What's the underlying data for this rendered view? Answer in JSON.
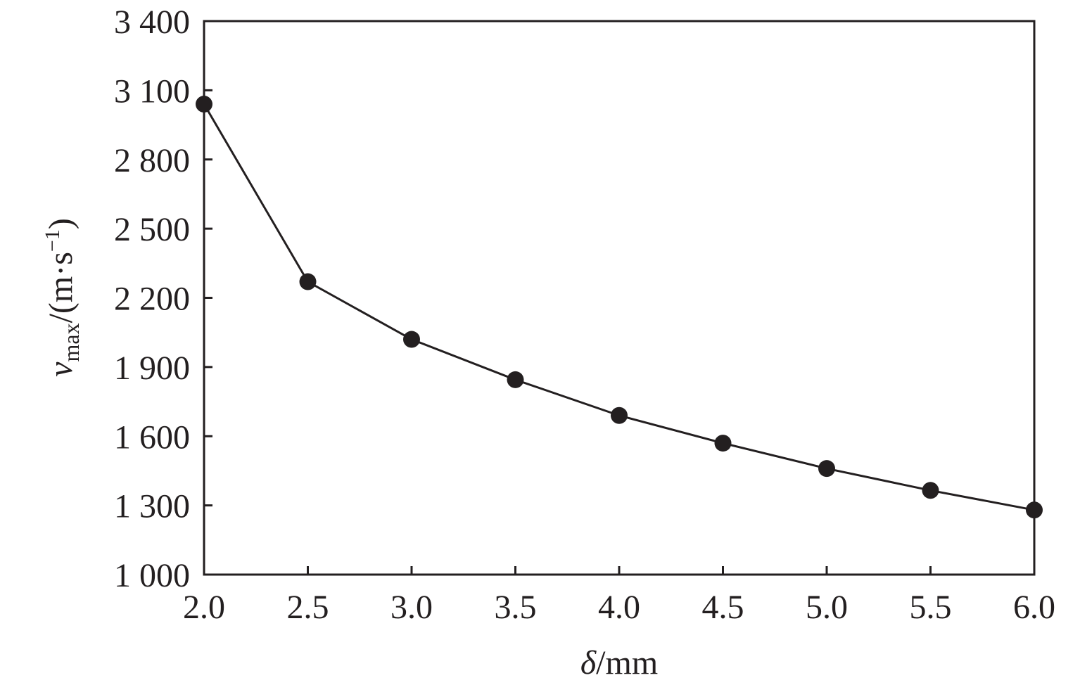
{
  "chart_data": {
    "type": "line",
    "title": "",
    "xlabel": {
      "symbol": "δ",
      "unit": "/mm"
    },
    "ylabel": {
      "symbol": "v",
      "subscript": "max",
      "unit": "/(m·s",
      "superscript": "−1",
      "close": ")"
    },
    "xlim": [
      2.0,
      6.0
    ],
    "ylim": [
      1000,
      3400
    ],
    "x_ticks": [
      2.0,
      2.5,
      3.0,
      3.5,
      4.0,
      4.5,
      5.0,
      5.5,
      6.0
    ],
    "x_tick_labels": [
      "2.0",
      "2.5",
      "3.0",
      "3.5",
      "4.0",
      "4.5",
      "5.0",
      "5.5",
      "6.0"
    ],
    "y_ticks": [
      1000,
      1300,
      1600,
      1900,
      2200,
      2500,
      2800,
      3100,
      3400
    ],
    "y_tick_labels": [
      "1 000",
      "1 300",
      "1 600",
      "1 900",
      "2 200",
      "2 500",
      "2 800",
      "3 100",
      "3 400"
    ],
    "grid": false,
    "series": [
      {
        "x": [
          2.0,
          2.5,
          3.0,
          3.5,
          4.0,
          4.5,
          5.0,
          5.5,
          6.0
        ],
        "values": [
          3040,
          2270,
          2020,
          1845,
          1690,
          1570,
          1460,
          1365,
          1280
        ],
        "marker": "filled-circle",
        "color": "#231f20"
      }
    ]
  }
}
